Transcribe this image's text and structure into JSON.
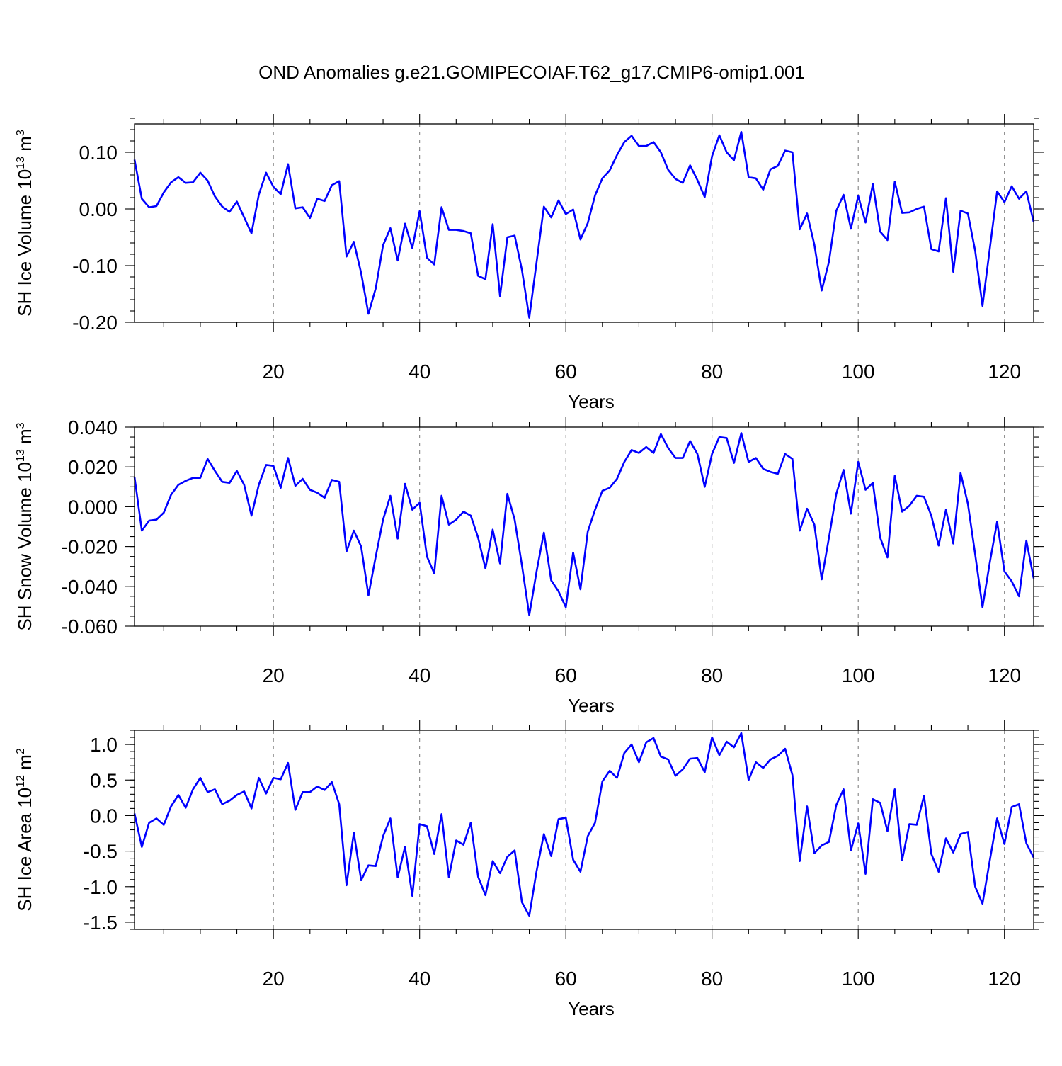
{
  "title": "OND Anomalies g.e21.GOMIPECOIAF.T62_g17.CMIP6-omip1.001",
  "chart_data": [
    {
      "type": "line",
      "ylabel_main": "SH Ice Volume 10",
      "ylabel_exp": "13",
      "ylabel_unit": " m",
      "ylabel_unit_exp": "3",
      "xlabel": "Years",
      "xlim": [
        1,
        124
      ],
      "ylim": [
        -0.2,
        0.15
      ],
      "yticks": [
        -0.2,
        -0.1,
        0.0,
        0.1
      ],
      "ytick_labels": [
        "-0.20",
        "-0.10",
        "0.00",
        "0.10"
      ],
      "yminor_step": 0.02,
      "xticks": [
        20,
        40,
        60,
        80,
        100,
        120
      ],
      "xtick_labels": [
        "20",
        "40",
        "60",
        "80",
        "100",
        "120"
      ],
      "xgrid": [
        20,
        40,
        60,
        80,
        100,
        120
      ],
      "color": "#0000ff",
      "series": [
        {
          "values": [
            0.087,
            0.018,
            0.003,
            0.005,
            0.029,
            0.047,
            0.056,
            0.046,
            0.047,
            0.064,
            0.05,
            0.022,
            0.004,
            -0.005,
            0.013,
            -0.015,
            -0.043,
            0.025,
            0.064,
            0.039,
            0.026,
            0.079,
            0.001,
            0.003,
            -0.016,
            0.018,
            0.014,
            0.042,
            0.049,
            -0.084,
            -0.058,
            -0.113,
            -0.185,
            -0.14,
            -0.064,
            -0.034,
            -0.091,
            -0.026,
            -0.069,
            -0.004,
            -0.086,
            -0.098,
            0.003,
            -0.037,
            -0.037,
            -0.039,
            -0.043,
            -0.118,
            -0.124,
            -0.027,
            -0.154,
            -0.05,
            -0.047,
            -0.108,
            -0.192,
            -0.094,
            0.004,
            -0.015,
            0.015,
            -0.009,
            -0.001,
            -0.054,
            -0.025,
            0.024,
            0.054,
            0.068,
            0.095,
            0.118,
            0.129,
            0.111,
            0.111,
            0.118,
            0.1,
            0.069,
            0.053,
            0.046,
            0.077,
            0.051,
            0.021,
            0.093,
            0.13,
            0.1,
            0.086,
            0.136,
            0.056,
            0.054,
            0.034,
            0.07,
            0.076,
            0.103,
            0.1,
            -0.036,
            -0.008,
            -0.063,
            -0.144,
            -0.093,
            -0.003,
            0.025,
            -0.035,
            0.023,
            -0.024,
            0.044,
            -0.04,
            -0.055,
            0.048,
            -0.007,
            -0.006,
            0.0,
            0.004,
            -0.071,
            -0.075,
            0.019,
            -0.111,
            -0.003,
            -0.008,
            -0.074,
            -0.171,
            -0.07,
            0.031,
            0.012,
            0.04,
            0.018,
            0.031,
            -0.023
          ]
        }
      ]
    },
    {
      "type": "line",
      "ylabel_main": "SH Snow Volume 10",
      "ylabel_exp": "13",
      "ylabel_unit": " m",
      "ylabel_unit_exp": "3",
      "xlabel": "Years",
      "xlim": [
        1,
        124
      ],
      "ylim": [
        -0.06,
        0.04
      ],
      "yticks": [
        -0.06,
        -0.04,
        -0.02,
        0.0,
        0.02,
        0.04
      ],
      "ytick_labels": [
        "-0.060",
        "-0.040",
        "-0.020",
        "0.000",
        "0.020",
        "0.040"
      ],
      "yminor_step": 0.005,
      "xticks": [
        20,
        40,
        60,
        80,
        100,
        120
      ],
      "xtick_labels": [
        "20",
        "40",
        "60",
        "80",
        "100",
        "120"
      ],
      "xgrid": [
        20,
        40,
        60,
        80,
        100,
        120
      ],
      "color": "#0000ff",
      "series": [
        {
          "values": [
            0.015,
            -0.012,
            -0.007,
            -0.0065,
            -0.003,
            0.006,
            0.011,
            0.013,
            0.0145,
            0.0145,
            0.024,
            0.018,
            0.0125,
            0.012,
            0.018,
            0.011,
            -0.0045,
            0.011,
            0.021,
            0.0205,
            0.0095,
            0.0245,
            0.0105,
            0.014,
            0.0085,
            0.007,
            0.0045,
            0.0135,
            0.0125,
            -0.0225,
            -0.012,
            -0.02,
            -0.0445,
            -0.025,
            -0.0065,
            0.0055,
            -0.016,
            0.0115,
            -0.0015,
            0.002,
            -0.025,
            -0.0335,
            0.0055,
            -0.009,
            -0.0065,
            -0.0025,
            -0.0045,
            -0.0155,
            -0.031,
            -0.0115,
            -0.0285,
            0.0065,
            -0.0065,
            -0.0295,
            -0.0545,
            -0.0325,
            -0.013,
            -0.037,
            -0.0425,
            -0.0505,
            -0.023,
            -0.0415,
            -0.0125,
            -0.0015,
            0.008,
            0.0095,
            0.014,
            0.0225,
            0.0285,
            0.027,
            0.03,
            0.027,
            0.0365,
            0.0295,
            0.0245,
            0.0245,
            0.033,
            0.0265,
            0.01,
            0.0265,
            0.035,
            0.0345,
            0.022,
            0.037,
            0.0225,
            0.0245,
            0.019,
            0.0175,
            0.0165,
            0.0265,
            0.024,
            -0.012,
            -0.001,
            -0.009,
            -0.0365,
            -0.0155,
            0.0065,
            0.0185,
            -0.0035,
            0.0225,
            0.0085,
            0.012,
            -0.0155,
            -0.0255,
            0.0155,
            -0.0025,
            0.0005,
            0.0055,
            0.005,
            -0.0045,
            -0.0195,
            -0.0015,
            -0.0185,
            0.017,
            0.0015,
            -0.024,
            -0.0505,
            -0.028,
            -0.0075,
            -0.0325,
            -0.0375,
            -0.045,
            -0.017,
            -0.036
          ]
        }
      ]
    },
    {
      "type": "line",
      "ylabel_main": "SH Ice Area 10",
      "ylabel_exp": "12",
      "ylabel_unit": " m",
      "ylabel_unit_exp": "2",
      "xlabel": "Years",
      "xlim": [
        1,
        124
      ],
      "ylim": [
        -1.6,
        1.2
      ],
      "yticks": [
        -1.5,
        -1.0,
        -0.5,
        0.0,
        0.5,
        1.0
      ],
      "ytick_labels": [
        "-1.5",
        "-1.0",
        "-0.5",
        "0.0",
        "0.5",
        "1.0"
      ],
      "yminor_step": 0.1,
      "xticks": [
        20,
        40,
        60,
        80,
        100,
        120
      ],
      "xtick_labels": [
        "20",
        "40",
        "60",
        "80",
        "100",
        "120"
      ],
      "xgrid": [
        20,
        40,
        60,
        80,
        100,
        120
      ],
      "color": "#0000ff",
      "series": [
        {
          "values": [
            0.03,
            -0.44,
            -0.1,
            -0.04,
            -0.13,
            0.13,
            0.29,
            0.11,
            0.37,
            0.53,
            0.33,
            0.37,
            0.16,
            0.21,
            0.29,
            0.34,
            0.1,
            0.53,
            0.31,
            0.53,
            0.51,
            0.74,
            0.08,
            0.33,
            0.33,
            0.41,
            0.36,
            0.47,
            0.16,
            -0.98,
            -0.24,
            -0.91,
            -0.7,
            -0.71,
            -0.29,
            -0.04,
            -0.87,
            -0.44,
            -1.13,
            -0.12,
            -0.15,
            -0.54,
            0.02,
            -0.87,
            -0.35,
            -0.41,
            -0.1,
            -0.86,
            -1.12,
            -0.64,
            -0.81,
            -0.58,
            -0.49,
            -1.22,
            -1.41,
            -0.78,
            -0.26,
            -0.57,
            -0.05,
            -0.03,
            -0.62,
            -0.79,
            -0.29,
            -0.1,
            0.48,
            0.63,
            0.53,
            0.88,
            1.0,
            0.75,
            1.03,
            1.09,
            0.83,
            0.79,
            0.56,
            0.65,
            0.8,
            0.81,
            0.61,
            1.1,
            0.85,
            1.04,
            0.96,
            1.16,
            0.5,
            0.75,
            0.67,
            0.79,
            0.84,
            0.94,
            0.57,
            -0.64,
            0.13,
            -0.53,
            -0.42,
            -0.37,
            0.15,
            0.37,
            -0.49,
            -0.11,
            -0.82,
            0.23,
            0.18,
            -0.22,
            0.37,
            -0.63,
            -0.12,
            -0.13,
            0.28,
            -0.54,
            -0.79,
            -0.32,
            -0.52,
            -0.26,
            -0.23,
            -1.0,
            -1.24,
            -0.63,
            -0.04,
            -0.4,
            0.12,
            0.16,
            -0.39,
            -0.59
          ]
        }
      ]
    }
  ]
}
